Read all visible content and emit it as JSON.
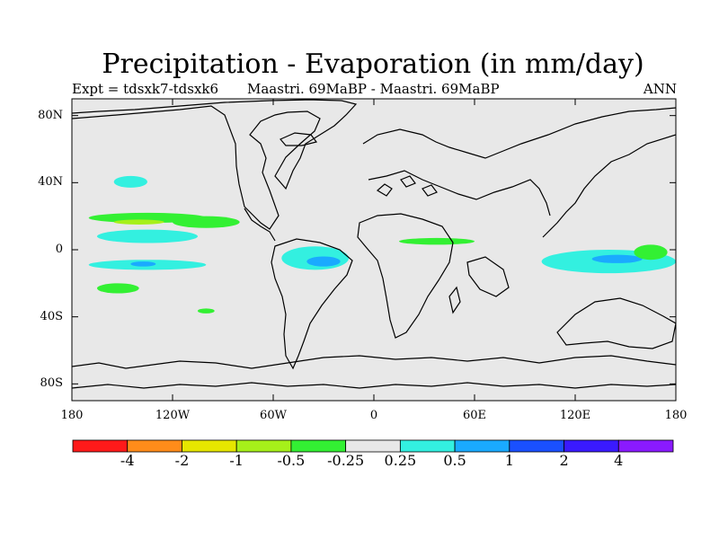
{
  "title": "Precipitation - Evaporation (in mm/day)",
  "subtitle_left": "Expt = tdsxk7-tdsxk6",
  "subtitle_center": "Maastri.  69MaBP - Maastri.  69MaBP",
  "subtitle_right": "ANN",
  "map": {
    "projection": "cylindrical-equidistant",
    "lon_range": [
      -180,
      180
    ],
    "lat_range": [
      -90,
      90
    ],
    "background_color": "#e8e8e8"
  },
  "axes": {
    "lat_ticks": [
      {
        "lat": 80,
        "label": "80N"
      },
      {
        "lat": 40,
        "label": "40N"
      },
      {
        "lat": 0,
        "label": "0"
      },
      {
        "lat": -40,
        "label": "40S"
      },
      {
        "lat": -80,
        "label": "80S"
      }
    ],
    "lon_ticks": [
      {
        "lon": -180,
        "label": "180"
      },
      {
        "lon": -120,
        "label": "120W"
      },
      {
        "lon": -60,
        "label": "60W"
      },
      {
        "lon": 0,
        "label": "0"
      },
      {
        "lon": 60,
        "label": "60E"
      },
      {
        "lon": 120,
        "label": "120E"
      },
      {
        "lon": 180,
        "label": "180"
      }
    ]
  },
  "colorbar": {
    "colors": [
      "#ff1a1a",
      "#ff8c1a",
      "#e6e600",
      "#a6f01a",
      "#33f033",
      "#e8e8e8",
      "#33f0e0",
      "#1aaaff",
      "#1a50ff",
      "#3a1aff",
      "#8a1aff"
    ],
    "labels": [
      "-4",
      "-2",
      "-1",
      "-0.5",
      "-0.25",
      "0.25",
      "0.5",
      "1",
      "2",
      "4"
    ]
  },
  "chart_data": {
    "type": "heatmap",
    "field": "P-E anomaly",
    "units": "mm/day",
    "levels": [
      -4,
      -2,
      -1,
      -0.5,
      -0.25,
      0.25,
      0.5,
      1,
      2,
      4
    ],
    "features": [
      {
        "band": "0.25 to 0.5",
        "lon_range": [
          -165,
          -105
        ],
        "lat_range": [
          4,
          12
        ]
      },
      {
        "band": "-0.5 to -0.25",
        "lon_range": [
          -170,
          -100
        ],
        "lat_range": [
          16,
          22
        ]
      },
      {
        "band": "-1 to -0.5",
        "lon_range": [
          -155,
          -125
        ],
        "lat_range": [
          15,
          18
        ]
      },
      {
        "band": "-0.5 to -0.25",
        "lon_range": [
          -120,
          -80
        ],
        "lat_range": [
          13,
          20
        ]
      },
      {
        "band": "0.25 to 0.5",
        "lon_range": [
          -170,
          -100
        ],
        "lat_range": [
          -12,
          -6
        ]
      },
      {
        "band": "0.5 to 1",
        "lon_range": [
          -145,
          -130
        ],
        "lat_range": [
          -10,
          -7
        ]
      },
      {
        "band": "0.25 to 0.5",
        "lon_range": [
          -55,
          -15
        ],
        "lat_range": [
          -12,
          2
        ]
      },
      {
        "band": "0.5 to 1",
        "lon_range": [
          -40,
          -20
        ],
        "lat_range": [
          -10,
          -4
        ]
      },
      {
        "band": "-0.5 to -0.25",
        "lon_range": [
          15,
          60
        ],
        "lat_range": [
          3,
          7
        ]
      },
      {
        "band": "0.25 to 0.5",
        "lon_range": [
          100,
          180
        ],
        "lat_range": [
          -14,
          0
        ]
      },
      {
        "band": "0.5 to 1",
        "lon_range": [
          130,
          160
        ],
        "lat_range": [
          -8,
          -3
        ]
      },
      {
        "band": "-0.5 to -0.25",
        "lon_range": [
          155,
          175
        ],
        "lat_range": [
          -6,
          3
        ]
      },
      {
        "band": "-0.5 to -0.25",
        "lon_range": [
          -165,
          -140
        ],
        "lat_range": [
          -26,
          -20
        ]
      },
      {
        "band": "-0.5 to -0.25",
        "lon_range": [
          -105,
          -95
        ],
        "lat_range": [
          -38,
          -35
        ]
      },
      {
        "band": "0.25 to 0.5",
        "lon_range": [
          -155,
          -135
        ],
        "lat_range": [
          37,
          44
        ]
      }
    ]
  }
}
